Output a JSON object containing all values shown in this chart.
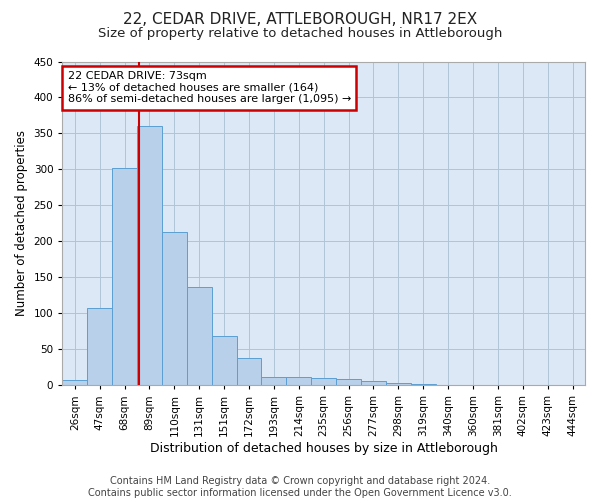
{
  "title1": "22, CEDAR DRIVE, ATTLEBOROUGH, NR17 2EX",
  "title2": "Size of property relative to detached houses in Attleborough",
  "xlabel": "Distribution of detached houses by size in Attleborough",
  "ylabel": "Number of detached properties",
  "footer1": "Contains HM Land Registry data © Crown copyright and database right 2024.",
  "footer2": "Contains public sector information licensed under the Open Government Licence v3.0.",
  "categories": [
    "26sqm",
    "47sqm",
    "68sqm",
    "89sqm",
    "110sqm",
    "131sqm",
    "151sqm",
    "172sqm",
    "193sqm",
    "214sqm",
    "235sqm",
    "256sqm",
    "277sqm",
    "298sqm",
    "319sqm",
    "340sqm",
    "360sqm",
    "381sqm",
    "402sqm",
    "423sqm",
    "444sqm"
  ],
  "values": [
    8,
    108,
    302,
    360,
    213,
    136,
    69,
    38,
    12,
    11,
    10,
    9,
    6,
    3,
    2,
    1,
    0,
    0,
    0,
    0,
    0
  ],
  "bar_color": "#b8d0ea",
  "bar_edge_color": "#5a9fd4",
  "ylim": [
    0,
    450
  ],
  "yticks": [
    0,
    50,
    100,
    150,
    200,
    250,
    300,
    350,
    400,
    450
  ],
  "vline_x": 2.57,
  "vline_color": "#cc0000",
  "annotation_text": "22 CEDAR DRIVE: 73sqm\n← 13% of detached houses are smaller (164)\n86% of semi-detached houses are larger (1,095) →",
  "annotation_box_color": "#ffffff",
  "annotation_box_edge": "#cc0000",
  "bg_color": "#ffffff",
  "plot_bg_color": "#dce8f5",
  "grid_color": "#b0c4d8",
  "title1_fontsize": 11,
  "title2_fontsize": 9.5,
  "xlabel_fontsize": 9,
  "ylabel_fontsize": 8.5,
  "tick_fontsize": 7.5,
  "footer_fontsize": 7,
  "ann_fontsize": 8
}
